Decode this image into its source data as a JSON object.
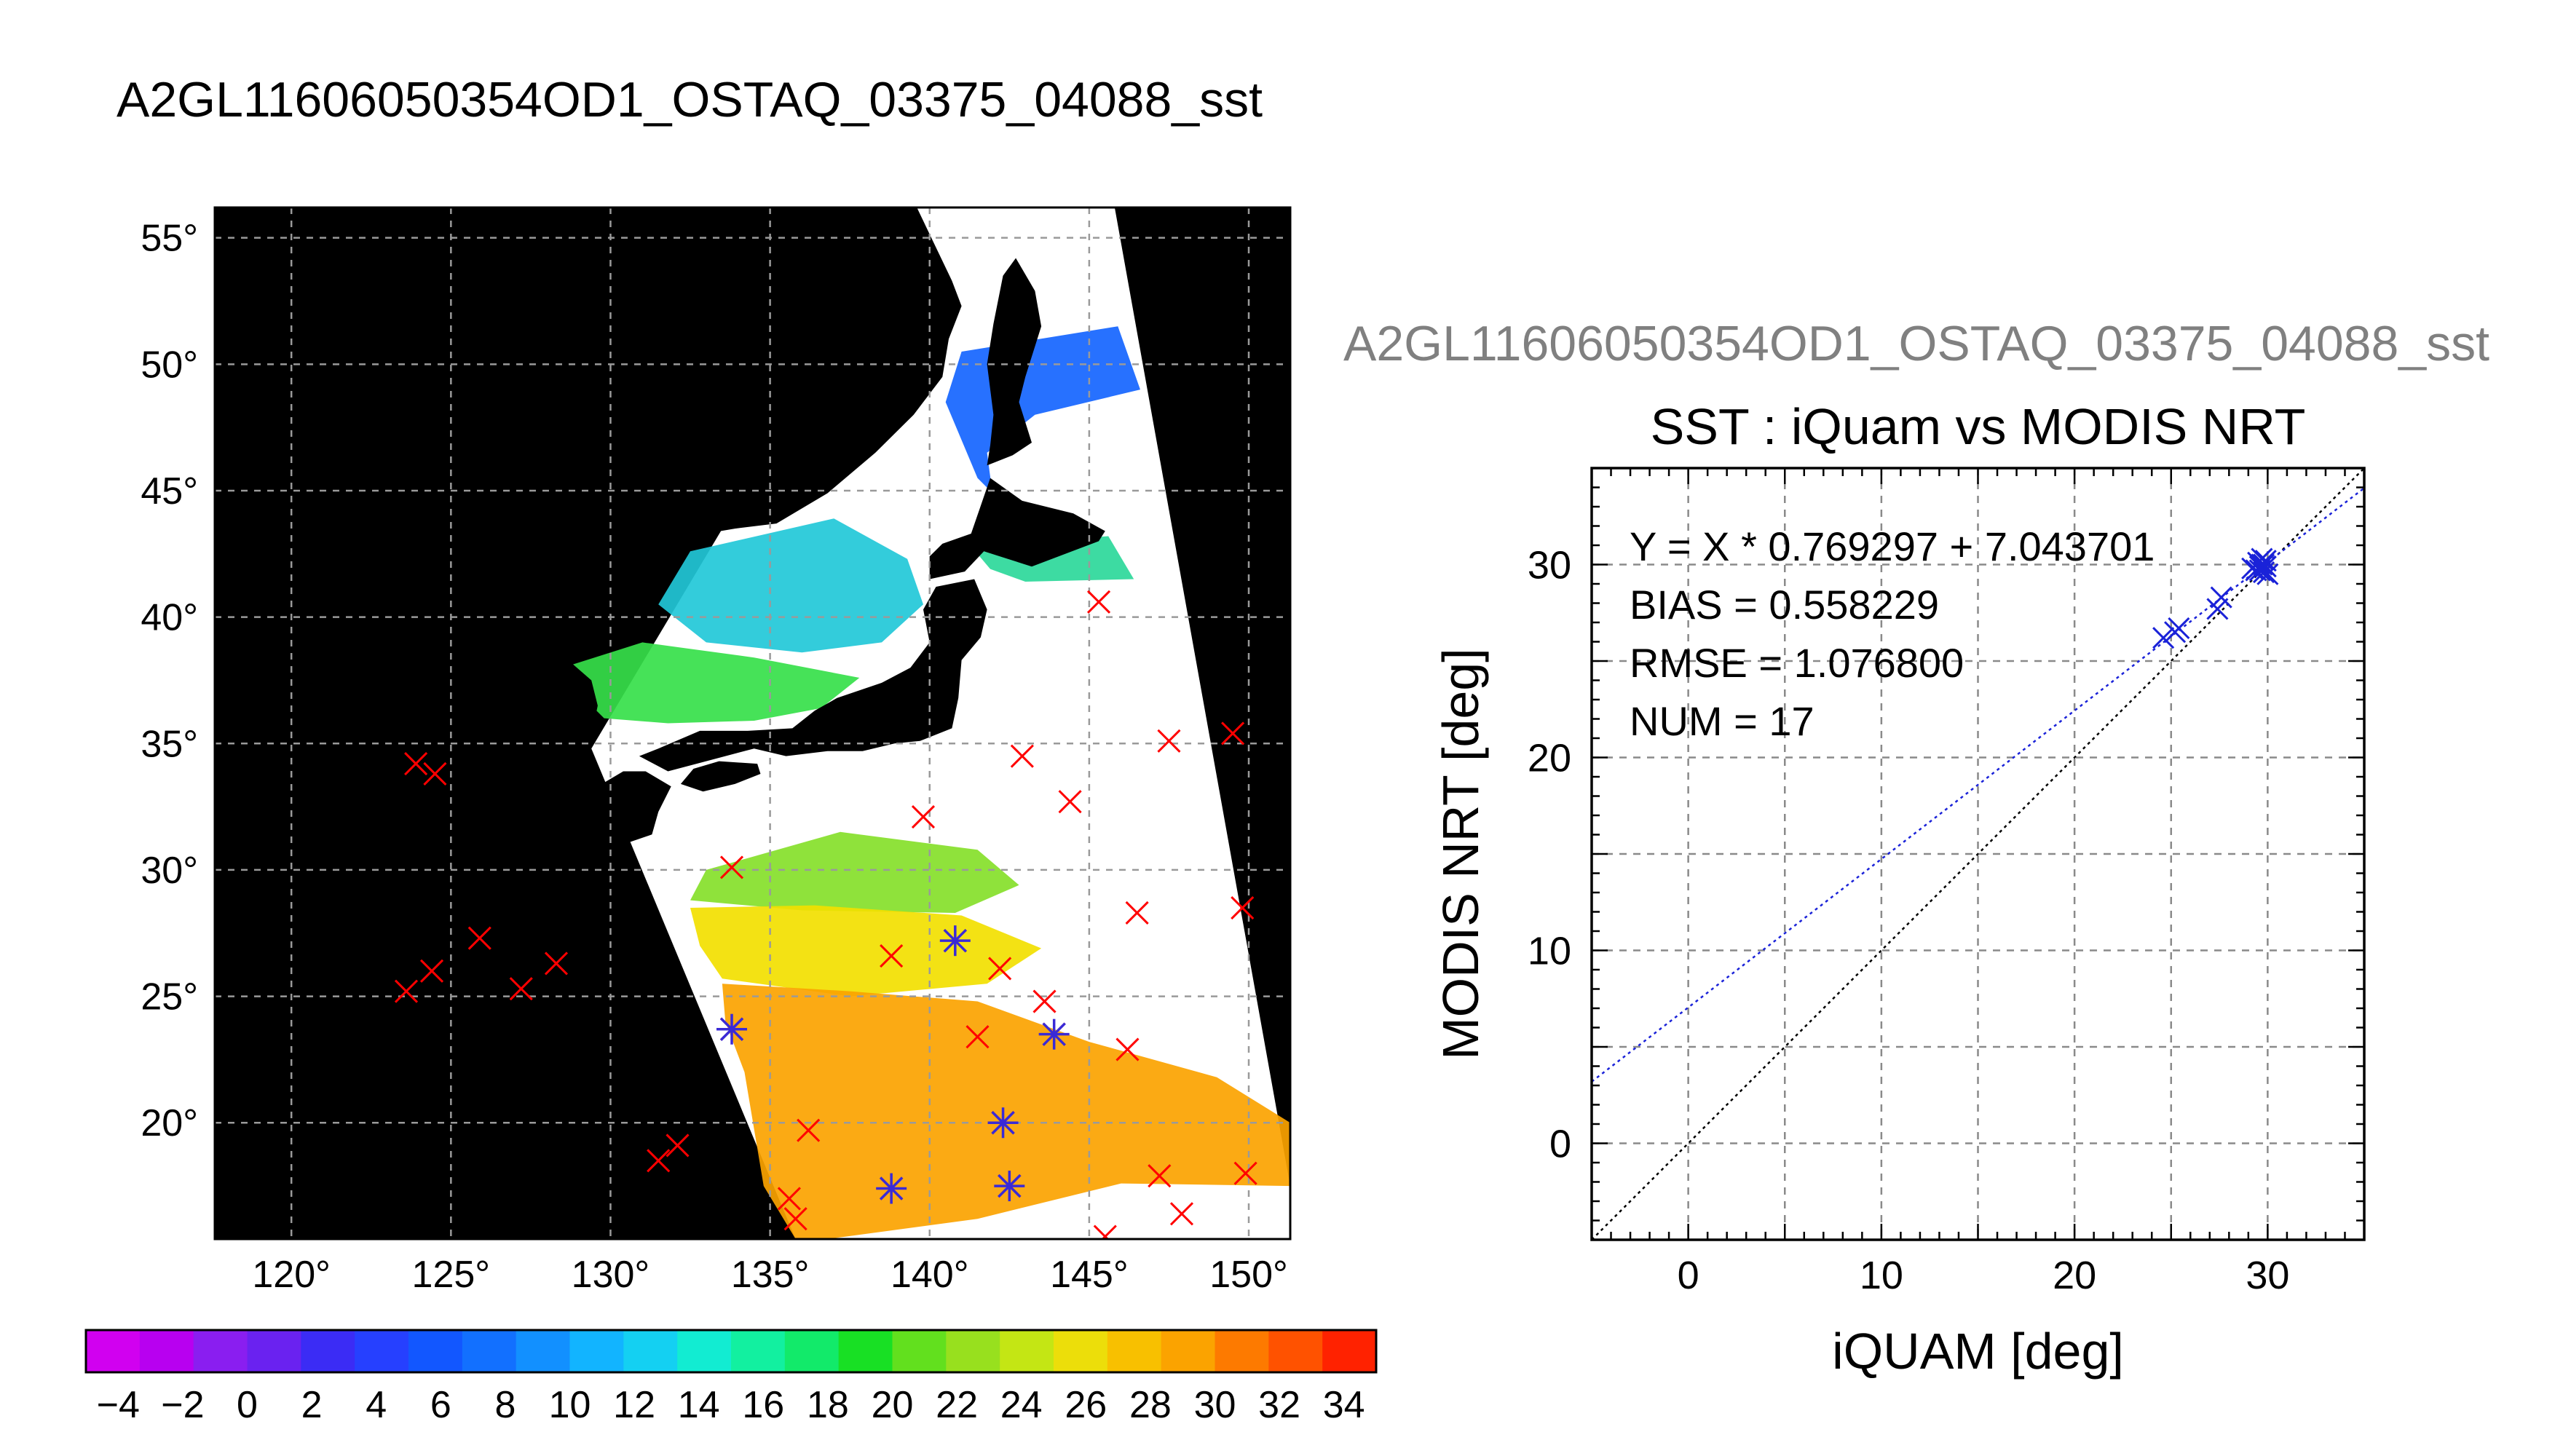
{
  "figure": {
    "main_title": "A2GL11606050354OD1_OSTAQ_03375_04088_sst",
    "right_title": "A2GL11606050354OD1_OSTAQ_03375_04088_sst"
  },
  "map": {
    "lon_ticks": [
      120,
      125,
      130,
      135,
      140,
      145,
      150
    ],
    "lat_ticks": [
      20,
      25,
      30,
      35,
      40,
      45,
      50,
      55
    ],
    "lon_range": [
      117.6,
      151.3
    ],
    "lat_range": [
      15.4,
      56.2
    ],
    "degree_symbol": "°",
    "background_color": "#000000",
    "swath_fill_color": "#ffffff",
    "marker_color_all": "#ff0000",
    "marker_color_matched": "#3a2ad6",
    "markers_all": [
      [
        123.9,
        34.2
      ],
      [
        124.5,
        33.8
      ],
      [
        123.6,
        25.2
      ],
      [
        124.4,
        26.0
      ],
      [
        125.9,
        27.3
      ],
      [
        127.2,
        25.3
      ],
      [
        128.3,
        26.3
      ],
      [
        131.5,
        18.5
      ],
      [
        132.1,
        19.1
      ],
      [
        133.8,
        30.1
      ],
      [
        133.8,
        23.7
      ],
      [
        135.6,
        17.0
      ],
      [
        135.8,
        16.2
      ],
      [
        136.2,
        19.7
      ],
      [
        138.8,
        26.6
      ],
      [
        138.8,
        17.4
      ],
      [
        139.8,
        32.1
      ],
      [
        140.8,
        27.2
      ],
      [
        141.5,
        23.4
      ],
      [
        142.2,
        26.1
      ],
      [
        142.3,
        20.0
      ],
      [
        142.5,
        17.5
      ],
      [
        142.9,
        34.5
      ],
      [
        143.6,
        24.8
      ],
      [
        143.9,
        23.5
      ],
      [
        144.4,
        32.7
      ],
      [
        145.3,
        40.6
      ],
      [
        145.5,
        15.5
      ],
      [
        146.2,
        22.9
      ],
      [
        146.5,
        28.3
      ],
      [
        147.2,
        17.9
      ],
      [
        147.5,
        35.1
      ],
      [
        147.9,
        16.4
      ],
      [
        149.5,
        35.4
      ],
      [
        149.8,
        28.5
      ],
      [
        149.9,
        18.0
      ]
    ],
    "markers_matched": [
      [
        133.8,
        23.7
      ],
      [
        138.8,
        17.4
      ],
      [
        140.8,
        27.2
      ],
      [
        142.3,
        20.0
      ],
      [
        142.5,
        17.5
      ],
      [
        143.9,
        23.5
      ]
    ],
    "swath_polygon": [
      [
        139.5,
        56.2
      ],
      [
        145.8,
        56.2
      ],
      [
        151.3,
        17.5
      ],
      [
        151.3,
        15.4
      ],
      [
        135.8,
        15.4
      ],
      [
        129.4,
        34.8
      ]
    ],
    "land_areas": [
      {
        "name": "honshu",
        "color": "#000000",
        "points": [
          [
            130.9,
            34.5
          ],
          [
            131.8,
            33.9
          ],
          [
            133.0,
            34.3
          ],
          [
            134.5,
            34.8
          ],
          [
            135.5,
            34.5
          ],
          [
            136.8,
            34.7
          ],
          [
            137.9,
            34.7
          ],
          [
            138.9,
            35.0
          ],
          [
            139.7,
            35.1
          ],
          [
            140.7,
            35.6
          ],
          [
            140.9,
            36.8
          ],
          [
            141.0,
            38.3
          ],
          [
            141.6,
            39.2
          ],
          [
            141.8,
            40.3
          ],
          [
            141.4,
            41.5
          ],
          [
            140.2,
            41.2
          ],
          [
            139.8,
            40.3
          ],
          [
            140.0,
            39.0
          ],
          [
            139.4,
            38.0
          ],
          [
            138.5,
            37.4
          ],
          [
            137.1,
            36.8
          ],
          [
            136.4,
            36.3
          ],
          [
            135.7,
            35.6
          ],
          [
            134.3,
            35.5
          ],
          [
            132.8,
            35.5
          ],
          [
            131.5,
            34.8
          ]
        ]
      },
      {
        "name": "shikoku",
        "color": "#000000",
        "points": [
          [
            132.2,
            33.4
          ],
          [
            132.9,
            33.1
          ],
          [
            133.9,
            33.4
          ],
          [
            134.7,
            33.8
          ],
          [
            134.6,
            34.2
          ],
          [
            133.4,
            34.3
          ],
          [
            132.6,
            34.0
          ]
        ]
      },
      {
        "name": "kyushu",
        "color": "#000000",
        "points": [
          [
            129.6,
            33.3
          ],
          [
            130.4,
            33.9
          ],
          [
            131.1,
            33.9
          ],
          [
            131.9,
            33.3
          ],
          [
            131.5,
            32.3
          ],
          [
            131.3,
            31.4
          ],
          [
            130.6,
            31.1
          ],
          [
            130.2,
            31.4
          ],
          [
            130.1,
            32.2
          ],
          [
            129.8,
            32.8
          ]
        ]
      },
      {
        "name": "hokkaido",
        "color": "#000000",
        "points": [
          [
            140.0,
            41.5
          ],
          [
            141.1,
            41.8
          ],
          [
            141.7,
            42.6
          ],
          [
            143.2,
            42.0
          ],
          [
            145.3,
            43.0
          ],
          [
            145.5,
            43.4
          ],
          [
            144.5,
            44.1
          ],
          [
            142.9,
            44.6
          ],
          [
            141.9,
            45.5
          ],
          [
            141.6,
            44.4
          ],
          [
            141.3,
            43.3
          ],
          [
            140.4,
            42.9
          ],
          [
            140.0,
            42.4
          ]
        ]
      },
      {
        "name": "sakhalin",
        "color": "#000000",
        "points": [
          [
            141.8,
            46.0
          ],
          [
            142.6,
            46.4
          ],
          [
            143.2,
            46.9
          ],
          [
            142.8,
            48.5
          ],
          [
            143.0,
            49.5
          ],
          [
            143.5,
            51.5
          ],
          [
            143.3,
            52.9
          ],
          [
            142.7,
            54.2
          ],
          [
            142.3,
            53.5
          ],
          [
            142.0,
            51.6
          ],
          [
            141.8,
            50.0
          ],
          [
            142.0,
            48.0
          ],
          [
            141.9,
            46.8
          ]
        ]
      },
      {
        "name": "korea",
        "color": "#000000",
        "points": [
          [
            129.4,
            35.3
          ],
          [
            129.6,
            36.5
          ],
          [
            129.4,
            37.5
          ],
          [
            128.4,
            38.6
          ],
          [
            127.5,
            39.7
          ],
          [
            128.5,
            40.5
          ],
          [
            129.8,
            41.6
          ],
          [
            130.2,
            42.4
          ],
          [
            130.8,
            42.6
          ],
          [
            131.3,
            43.0
          ],
          [
            132.5,
            43.2
          ],
          [
            133.9,
            43.5
          ],
          [
            135.2,
            43.7
          ],
          [
            136.8,
            44.9
          ],
          [
            138.3,
            46.5
          ],
          [
            139.5,
            48.0
          ],
          [
            140.4,
            49.5
          ],
          [
            140.6,
            51.0
          ],
          [
            141.0,
            52.3
          ],
          [
            140.7,
            53.3
          ],
          [
            139.6,
            56.2
          ],
          [
            117.6,
            56.2
          ],
          [
            117.6,
            39.0
          ],
          [
            119.5,
            37.2
          ],
          [
            121.5,
            37.4
          ],
          [
            122.5,
            37.0
          ],
          [
            124.8,
            39.6
          ],
          [
            125.2,
            38.2
          ],
          [
            126.5,
            37.4
          ],
          [
            126.4,
            35.0
          ],
          [
            127.6,
            34.6
          ],
          [
            128.6,
            35.0
          ]
        ]
      }
    ],
    "sst_bands": [
      {
        "name": "band-north",
        "color": "#1565ff",
        "points": [
          [
            141.0,
            50.5
          ],
          [
            145.9,
            51.5
          ],
          [
            146.6,
            49.0
          ],
          [
            143.3,
            48.0
          ],
          [
            141.8,
            46.5
          ],
          [
            142.0,
            44.6
          ],
          [
            144.5,
            44.1
          ],
          [
            145.3,
            43.0
          ],
          [
            143.0,
            43.6
          ],
          [
            141.5,
            45.5
          ],
          [
            140.5,
            48.5
          ]
        ]
      },
      {
        "name": "band-japan-sea-north",
        "color": "#22c8d8",
        "points": [
          [
            132.5,
            42.6
          ],
          [
            137.0,
            43.9
          ],
          [
            139.3,
            42.3
          ],
          [
            139.8,
            40.5
          ],
          [
            138.5,
            39.0
          ],
          [
            136.0,
            38.6
          ],
          [
            133.0,
            39.0
          ],
          [
            131.5,
            40.5
          ]
        ]
      },
      {
        "name": "band-japan-sea-south",
        "color": "#36e04a",
        "points": [
          [
            128.5,
            38.0
          ],
          [
            131.0,
            39.0
          ],
          [
            134.5,
            38.4
          ],
          [
            137.8,
            37.6
          ],
          [
            136.6,
            36.4
          ],
          [
            134.5,
            35.9
          ],
          [
            131.8,
            35.8
          ],
          [
            129.8,
            36.0
          ],
          [
            129.0,
            37.0
          ]
        ]
      },
      {
        "name": "band-pacific-north",
        "color": "#2cd89a",
        "points": [
          [
            141.3,
            42.8
          ],
          [
            145.6,
            43.2
          ],
          [
            146.4,
            41.5
          ],
          [
            143.0,
            41.4
          ],
          [
            141.9,
            41.9
          ]
        ]
      },
      {
        "name": "band-pacific-mid",
        "color": "#86e02a",
        "points": [
          [
            133.0,
            30.0
          ],
          [
            137.2,
            31.5
          ],
          [
            141.5,
            30.8
          ],
          [
            142.8,
            29.4
          ],
          [
            140.8,
            28.3
          ],
          [
            136.0,
            28.4
          ],
          [
            132.5,
            28.8
          ]
        ]
      },
      {
        "name": "band-pacific-yellow",
        "color": "#f2e000",
        "points": [
          [
            132.5,
            28.5
          ],
          [
            136.4,
            28.6
          ],
          [
            141.0,
            28.2
          ],
          [
            143.5,
            26.9
          ],
          [
            141.8,
            25.5
          ],
          [
            137.5,
            25.0
          ],
          [
            133.5,
            25.7
          ],
          [
            132.8,
            27.0
          ]
        ]
      },
      {
        "name": "band-pacific-orange",
        "color": "#fba300",
        "points": [
          [
            133.5,
            25.5
          ],
          [
            137.5,
            25.2
          ],
          [
            141.5,
            24.8
          ],
          [
            145.0,
            23.2
          ],
          [
            149.0,
            21.8
          ],
          [
            151.3,
            20.0
          ],
          [
            151.3,
            17.5
          ],
          [
            146.0,
            17.6
          ],
          [
            141.5,
            16.2
          ],
          [
            136.8,
            15.4
          ],
          [
            135.8,
            15.4
          ],
          [
            134.8,
            17.5
          ],
          [
            134.2,
            22.0
          ],
          [
            133.6,
            24.0
          ]
        ]
      }
    ]
  },
  "colorbar": {
    "min": -5,
    "max": 35,
    "step": 2,
    "tick_labels": [
      "−4",
      "−2",
      "0",
      "2",
      "4",
      "6",
      "8",
      "10",
      "12",
      "14",
      "16",
      "18",
      "20",
      "22",
      "24",
      "26",
      "28",
      "30",
      "32",
      "34"
    ],
    "tick_values": [
      -4,
      -2,
      0,
      2,
      4,
      6,
      8,
      10,
      12,
      14,
      16,
      18,
      20,
      22,
      24,
      26,
      28,
      30,
      32,
      34
    ],
    "colors": [
      "#d100f0",
      "#b800f0",
      "#8a1ef0",
      "#6a22f0",
      "#3b2cf5",
      "#2640ff",
      "#1257ff",
      "#1270ff",
      "#1290ff",
      "#12b4ff",
      "#14d0f2",
      "#12ecd2",
      "#12f0a0",
      "#12ea6a",
      "#18e024",
      "#62e01e",
      "#98e01e",
      "#c4e614",
      "#ecde0a",
      "#f8c000",
      "#fba300",
      "#fd7a00",
      "#ff5200",
      "#ff2200"
    ]
  },
  "chart_data": {
    "type": "scatter",
    "title": "SST : iQuam vs MODIS NRT",
    "xlabel": "iQUAM [deg]",
    "ylabel": "MODIS NRT [deg]",
    "xlim": [
      -5,
      35
    ],
    "ylim": [
      -5,
      35
    ],
    "x_ticks": [
      0,
      10,
      20,
      30
    ],
    "y_ticks": [
      0,
      10,
      20,
      30
    ],
    "grid": true,
    "annotations": [
      "Y = X * 0.769297 + 7.043701",
      "BIAS = 0.558229",
      "RMSE = 1.076800",
      "NUM = 17"
    ],
    "fit": {
      "slope": 0.769297,
      "intercept": 7.043701,
      "color": "#1a22d8"
    },
    "one_to_one": {
      "color": "#000000"
    },
    "marker_color": "#1a22d8",
    "series": [
      {
        "x": [
          24.6,
          25.2,
          25.4,
          27.4,
          27.6,
          29.2,
          29.4,
          29.5,
          29.6,
          29.7,
          29.8,
          29.8,
          29.9,
          30.0,
          29.9,
          29.6,
          29.7
        ],
        "y": [
          26.2,
          26.5,
          26.7,
          27.7,
          28.3,
          29.8,
          29.7,
          30.1,
          29.9,
          30.3,
          29.6,
          30.0,
          29.9,
          29.5,
          30.2,
          29.7,
          30.0
        ]
      }
    ]
  }
}
